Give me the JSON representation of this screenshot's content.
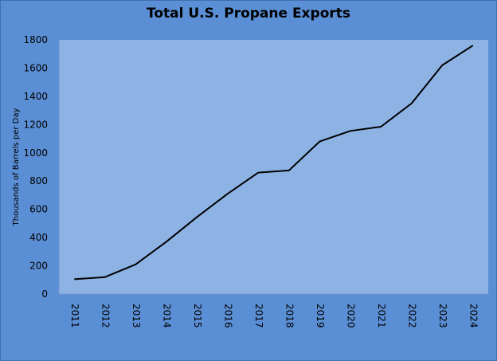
{
  "chart_data": {
    "type": "line",
    "title": "Total U.S. Propane Exports",
    "xlabel": "",
    "ylabel": "Thousands of Barrels per Day",
    "categories": [
      "2011",
      "2012",
      "2013",
      "2014",
      "2015",
      "2016",
      "2017",
      "2018",
      "2019",
      "2020",
      "2021",
      "2022",
      "2023",
      "2024"
    ],
    "series": [
      {
        "values": [
          105,
          120,
          210,
          370,
          545,
          710,
          860,
          875,
          1080,
          1155,
          1185,
          1350,
          1620,
          1760
        ]
      }
    ],
    "ylim": [
      0,
      1800
    ],
    "yticks": [
      0,
      200,
      400,
      600,
      800,
      1000,
      1200,
      1400,
      1600,
      1800
    ],
    "grid": false,
    "legend": "none",
    "colors": {
      "frame_background": "#5b8fd5",
      "plot_background": "#8db3e5",
      "line": "#000000"
    }
  }
}
